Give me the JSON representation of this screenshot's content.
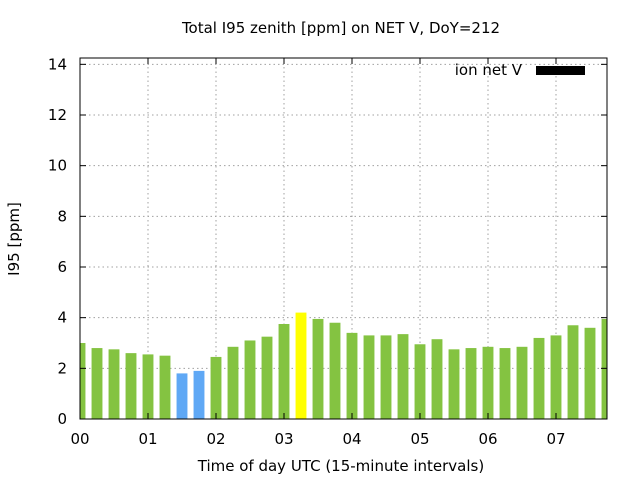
{
  "chart_data": {
    "type": "bar",
    "title": "Total I95 zenith [ppm] on NET V, DoY=212",
    "xlabel": "Time of day UTC (15-minute intervals)",
    "ylabel": "I95 [ppm]",
    "ylim": [
      0,
      14.25
    ],
    "xlim": [
      0,
      7.75
    ],
    "yticks": [
      0,
      2,
      4,
      6,
      8,
      10,
      12,
      14
    ],
    "xticks": [
      {
        "value": 0,
        "label": "00"
      },
      {
        "value": 1,
        "label": "01"
      },
      {
        "value": 2,
        "label": "02"
      },
      {
        "value": 3,
        "label": "03"
      },
      {
        "value": 4,
        "label": "04"
      },
      {
        "value": 5,
        "label": "05"
      },
      {
        "value": 6,
        "label": "06"
      },
      {
        "value": 7,
        "label": "07"
      }
    ],
    "grid": true,
    "legend": {
      "position": "top-right",
      "label": "ion net V",
      "color": "#000000"
    },
    "bar_width_hours": 0.16,
    "series": [
      {
        "x": [
          0,
          0.25,
          0.5,
          0.75,
          1,
          1.25,
          1.5,
          1.75,
          2,
          2.25,
          2.5,
          2.75,
          3,
          3.25,
          3.5,
          3.75,
          4,
          4.25,
          4.5,
          4.75,
          5,
          5.25,
          5.5,
          5.75,
          6,
          6.25,
          6.5,
          6.75,
          7,
          7.25,
          7.5,
          7.75
        ],
        "values": [
          3.0,
          2.8,
          2.75,
          2.6,
          2.55,
          2.5,
          1.8,
          1.9,
          2.45,
          2.85,
          3.1,
          3.25,
          3.75,
          4.2,
          3.95,
          3.8,
          3.4,
          3.3,
          3.3,
          3.35,
          2.95,
          3.15,
          2.75,
          2.8,
          2.85,
          2.8,
          2.85,
          3.2,
          3.3,
          3.7,
          3.6,
          3.95
        ],
        "colors": [
          "#84c341",
          "#84c341",
          "#84c341",
          "#84c341",
          "#84c341",
          "#84c341",
          "#5fa8f5",
          "#5fa8f5",
          "#84c341",
          "#84c341",
          "#84c341",
          "#84c341",
          "#84c341",
          "#ffff00",
          "#84c341",
          "#84c341",
          "#84c341",
          "#84c341",
          "#84c341",
          "#84c341",
          "#84c341",
          "#84c341",
          "#84c341",
          "#84c341",
          "#84c341",
          "#84c341",
          "#84c341",
          "#84c341",
          "#84c341",
          "#84c341",
          "#84c341",
          "#84c341"
        ]
      }
    ]
  }
}
